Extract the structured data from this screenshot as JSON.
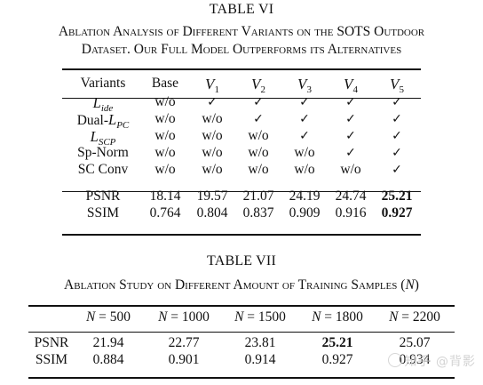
{
  "table6": {
    "label": "TABLE VI",
    "caption_line1": "Ablation Analysis of Different Variants on the SOTS Outdoor",
    "caption_line2": "Dataset. Our Full Model Outperforms its Alternatives",
    "header": {
      "variants": "Variants",
      "base": "Base"
    },
    "variant_symbol": "V",
    "variant_indices": [
      "1",
      "2",
      "3",
      "4",
      "5"
    ],
    "component_rows": [
      {
        "base": "L",
        "sub": "ide",
        "prefix": "",
        "cells": [
          "w/o",
          "✓",
          "✓",
          "✓",
          "✓",
          "✓"
        ]
      },
      {
        "base": "L",
        "sub": "PC",
        "prefix": "Dual-",
        "cells": [
          "w/o",
          "w/o",
          "✓",
          "✓",
          "✓",
          "✓"
        ]
      },
      {
        "base": "L",
        "sub": "SCP",
        "prefix": "",
        "cells": [
          "w/o",
          "w/o",
          "w/o",
          "✓",
          "✓",
          "✓"
        ]
      },
      {
        "base": "",
        "sub": "",
        "prefix": "Sp-Norm",
        "cells": [
          "w/o",
          "w/o",
          "w/o",
          "w/o",
          "✓",
          "✓"
        ]
      },
      {
        "base": "",
        "sub": "",
        "prefix": "SC Conv",
        "cells": [
          "w/o",
          "w/o",
          "w/o",
          "w/o",
          "w/o",
          "✓"
        ]
      }
    ],
    "metric_rows": [
      {
        "name": "PSNR",
        "cells": [
          "18.14",
          "19.57",
          "21.07",
          "24.19",
          "24.74",
          "25.21"
        ],
        "bold_index": 5
      },
      {
        "name": "SSIM",
        "cells": [
          "0.764",
          "0.804",
          "0.837",
          "0.909",
          "0.916",
          "0.927"
        ],
        "bold_index": 5
      }
    ]
  },
  "table7": {
    "label": "TABLE VII",
    "caption": "Ablation Study on Different Amount of Training Samples",
    "caption_var": "N",
    "var_symbol": "N",
    "sample_counts": [
      "500",
      "1000",
      "1500",
      "1800",
      "2200"
    ],
    "rows": [
      {
        "name": "PSNR",
        "cells": [
          "21.94",
          "22.77",
          "23.81",
          "25.21",
          "25.07"
        ],
        "bold_index": 3
      },
      {
        "name": "SSIM",
        "cells": [
          "0.884",
          "0.901",
          "0.914",
          "0.927",
          "0.934"
        ],
        "bold_index": -1
      }
    ]
  },
  "watermark": "知乎 @背影"
}
